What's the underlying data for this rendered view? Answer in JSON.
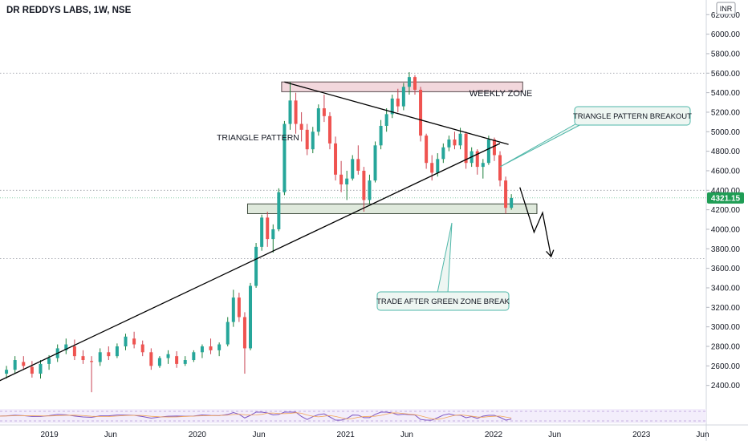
{
  "header": {
    "title": "DR REDDYS LABS, 1W, NSE"
  },
  "currency_badge": "INR",
  "price_tag": "4321.15",
  "annotations": {
    "weekly_zone": "WEEKLY ZONE",
    "triangle_pattern": "TRIANGLE PATTERN",
    "triangle_breakout": "TRIANGLE PATTERN BREAKOUT",
    "trade_note": "TRADE AFTER GREEN ZONE BREAK"
  },
  "colors": {
    "up": "#26a69a",
    "down": "#ef5350",
    "wick_up": "#1b7f3a",
    "wick_down": "#c94453",
    "weekly_zone_fill": "#f2d7dc",
    "green_zone_fill": "#dfe9dc",
    "callout_border": "#4fb7a9",
    "callout_fill": "#eef6f2",
    "price_tag": "#1f9d55",
    "axis_text": "#131722",
    "grid": "#b2b5be"
  },
  "chart_data": {
    "type": "candlestick",
    "title": "DR REDDYS LABS, 1W, NSE",
    "currency": "INR",
    "last_price": 4321.15,
    "y_ticks": [
      2400,
      2600,
      2800,
      3000,
      3200,
      3400,
      3600,
      3800,
      4000,
      4200,
      4400,
      4600,
      4800,
      5000,
      5200,
      5400,
      5600,
      5800,
      6000,
      6200
    ],
    "y_tick_labels": [
      "2400.00",
      "2600.00",
      "2800.00",
      "3000.00",
      "3200.00",
      "3400.00",
      "3600.00",
      "3800.00",
      "4000.00",
      "4200.00",
      "4400.00",
      "4600.00",
      "4800.00",
      "5000.00",
      "5200.00",
      "5400.00",
      "5600.00",
      "5800.00",
      "6000.00",
      "6200.00"
    ],
    "ylim": [
      2200,
      6350
    ],
    "x_ticks": [
      {
        "label": "2019",
        "date": "2019-01-01"
      },
      {
        "label": "Jun",
        "date": "2019-06-01"
      },
      {
        "label": "2020",
        "date": "2020-01-01"
      },
      {
        "label": "Jun",
        "date": "2020-06-01"
      },
      {
        "label": "2021",
        "date": "2021-01-01"
      },
      {
        "label": "Jun",
        "date": "2021-06-01"
      },
      {
        "label": "2022",
        "date": "2022-01-01"
      },
      {
        "label": "Jun",
        "date": "2022-06-01"
      },
      {
        "label": "2023",
        "date": "2023-01-01"
      },
      {
        "label": "Jun",
        "date": "2023-06-01"
      }
    ],
    "xlim": [
      "2018-09-01",
      "2023-06-10"
    ],
    "horizontal_levels": [
      5600,
      4400,
      3700
    ],
    "weekly_zone": {
      "from": "2020-07-27",
      "to": "2022-03-14",
      "low": 5410,
      "high": 5510
    },
    "green_zone": {
      "from": "2020-05-04",
      "to": "2022-04-18",
      "low": 4160,
      "high": 4260
    },
    "trendlines": [
      {
        "name": "ascending",
        "from": {
          "date": "2018-08-27",
          "price": 2440
        },
        "to": {
          "date": "2022-01-17",
          "price": 4880
        }
      },
      {
        "name": "descending",
        "from": {
          "date": "2020-08-03",
          "price": 5510
        },
        "to": {
          "date": "2022-02-07",
          "price": 4870
        }
      }
    ],
    "projection": [
      {
        "date": "2022-03-07",
        "price": 4430
      },
      {
        "date": "2022-04-11",
        "price": 3970
      },
      {
        "date": "2022-05-02",
        "price": 4170
      },
      {
        "date": "2022-05-23",
        "price": 3720
      }
    ],
    "indicator": {
      "type": "oscillator",
      "range": [
        0,
        100
      ]
    },
    "candles": [
      {
        "date": "2018-08-27",
        "o": 2490,
        "h": 2560,
        "l": 2440,
        "c": 2520
      },
      {
        "date": "2018-09-17",
        "o": 2520,
        "h": 2600,
        "l": 2470,
        "c": 2560
      },
      {
        "date": "2018-10-08",
        "o": 2560,
        "h": 2700,
        "l": 2520,
        "c": 2660
      },
      {
        "date": "2018-10-29",
        "o": 2640,
        "h": 2700,
        "l": 2560,
        "c": 2600
      },
      {
        "date": "2018-11-19",
        "o": 2590,
        "h": 2650,
        "l": 2480,
        "c": 2520
      },
      {
        "date": "2018-12-10",
        "o": 2520,
        "h": 2660,
        "l": 2470,
        "c": 2620
      },
      {
        "date": "2018-12-31",
        "o": 2620,
        "h": 2710,
        "l": 2560,
        "c": 2680
      },
      {
        "date": "2019-01-21",
        "o": 2680,
        "h": 2820,
        "l": 2640,
        "c": 2780
      },
      {
        "date": "2019-02-11",
        "o": 2760,
        "h": 2880,
        "l": 2720,
        "c": 2820
      },
      {
        "date": "2019-03-04",
        "o": 2800,
        "h": 2870,
        "l": 2660,
        "c": 2700
      },
      {
        "date": "2019-03-25",
        "o": 2700,
        "h": 2760,
        "l": 2620,
        "c": 2660
      },
      {
        "date": "2019-04-15",
        "o": 2650,
        "h": 2700,
        "l": 2330,
        "c": 2640
      },
      {
        "date": "2019-05-06",
        "o": 2640,
        "h": 2780,
        "l": 2600,
        "c": 2740
      },
      {
        "date": "2019-05-27",
        "o": 2740,
        "h": 2800,
        "l": 2660,
        "c": 2700
      },
      {
        "date": "2019-06-17",
        "o": 2700,
        "h": 2830,
        "l": 2680,
        "c": 2800
      },
      {
        "date": "2019-07-08",
        "o": 2800,
        "h": 2930,
        "l": 2760,
        "c": 2900
      },
      {
        "date": "2019-07-29",
        "o": 2880,
        "h": 2950,
        "l": 2780,
        "c": 2820
      },
      {
        "date": "2019-08-19",
        "o": 2820,
        "h": 2860,
        "l": 2700,
        "c": 2740
      },
      {
        "date": "2019-09-09",
        "o": 2740,
        "h": 2780,
        "l": 2560,
        "c": 2600
      },
      {
        "date": "2019-09-30",
        "o": 2600,
        "h": 2700,
        "l": 2580,
        "c": 2680
      },
      {
        "date": "2019-10-21",
        "o": 2680,
        "h": 2760,
        "l": 2620,
        "c": 2720
      },
      {
        "date": "2019-11-11",
        "o": 2700,
        "h": 2750,
        "l": 2580,
        "c": 2620
      },
      {
        "date": "2019-12-02",
        "o": 2620,
        "h": 2700,
        "l": 2600,
        "c": 2660
      },
      {
        "date": "2019-12-23",
        "o": 2660,
        "h": 2760,
        "l": 2640,
        "c": 2740
      },
      {
        "date": "2020-01-13",
        "o": 2740,
        "h": 2820,
        "l": 2680,
        "c": 2800
      },
      {
        "date": "2020-02-03",
        "o": 2800,
        "h": 2880,
        "l": 2720,
        "c": 2760
      },
      {
        "date": "2020-02-24",
        "o": 2760,
        "h": 2840,
        "l": 2700,
        "c": 2820
      },
      {
        "date": "2020-03-16",
        "o": 2820,
        "h": 3100,
        "l": 2800,
        "c": 3050
      },
      {
        "date": "2020-03-30",
        "o": 3050,
        "h": 3380,
        "l": 3000,
        "c": 3300
      },
      {
        "date": "2020-04-13",
        "o": 3300,
        "h": 3350,
        "l": 3050,
        "c": 3100
      },
      {
        "date": "2020-04-27",
        "o": 3100,
        "h": 3150,
        "l": 2520,
        "c": 2780
      },
      {
        "date": "2020-05-11",
        "o": 2780,
        "h": 3450,
        "l": 2760,
        "c": 3420
      },
      {
        "date": "2020-05-25",
        "o": 3420,
        "h": 3860,
        "l": 3400,
        "c": 3820
      },
      {
        "date": "2020-06-08",
        "o": 3820,
        "h": 4150,
        "l": 3780,
        "c": 4120
      },
      {
        "date": "2020-06-22",
        "o": 4120,
        "h": 4180,
        "l": 3820,
        "c": 3900
      },
      {
        "date": "2020-07-06",
        "o": 3900,
        "h": 4050,
        "l": 3760,
        "c": 4000
      },
      {
        "date": "2020-07-20",
        "o": 4000,
        "h": 4420,
        "l": 3980,
        "c": 4380
      },
      {
        "date": "2020-08-03",
        "o": 4380,
        "h": 5110,
        "l": 4350,
        "c": 5080
      },
      {
        "date": "2020-08-17",
        "o": 5080,
        "h": 5510,
        "l": 5020,
        "c": 5320
      },
      {
        "date": "2020-08-31",
        "o": 5320,
        "h": 5400,
        "l": 4980,
        "c": 5080
      },
      {
        "date": "2020-09-14",
        "o": 5080,
        "h": 5200,
        "l": 4900,
        "c": 5020
      },
      {
        "date": "2020-09-28",
        "o": 5020,
        "h": 5080,
        "l": 4760,
        "c": 4820
      },
      {
        "date": "2020-10-12",
        "o": 4820,
        "h": 5050,
        "l": 4780,
        "c": 5000
      },
      {
        "date": "2020-10-26",
        "o": 5000,
        "h": 5280,
        "l": 4960,
        "c": 5240
      },
      {
        "date": "2020-11-09",
        "o": 5240,
        "h": 5380,
        "l": 5100,
        "c": 5160
      },
      {
        "date": "2020-11-23",
        "o": 5160,
        "h": 5200,
        "l": 4820,
        "c": 4880
      },
      {
        "date": "2020-12-07",
        "o": 4880,
        "h": 4950,
        "l": 4500,
        "c": 4560
      },
      {
        "date": "2020-12-21",
        "o": 4560,
        "h": 4700,
        "l": 4380,
        "c": 4460
      },
      {
        "date": "2021-01-04",
        "o": 4460,
        "h": 4600,
        "l": 4300,
        "c": 4520
      },
      {
        "date": "2021-01-18",
        "o": 4520,
        "h": 4760,
        "l": 4500,
        "c": 4720
      },
      {
        "date": "2021-02-01",
        "o": 4720,
        "h": 4860,
        "l": 4560,
        "c": 4600
      },
      {
        "date": "2021-02-15",
        "o": 4600,
        "h": 4640,
        "l": 4180,
        "c": 4300
      },
      {
        "date": "2021-03-01",
        "o": 4300,
        "h": 4560,
        "l": 4260,
        "c": 4500
      },
      {
        "date": "2021-03-15",
        "o": 4500,
        "h": 4900,
        "l": 4480,
        "c": 4860
      },
      {
        "date": "2021-03-29",
        "o": 4860,
        "h": 5120,
        "l": 4820,
        "c": 5060
      },
      {
        "date": "2021-04-12",
        "o": 5060,
        "h": 5240,
        "l": 5000,
        "c": 5180
      },
      {
        "date": "2021-04-26",
        "o": 5180,
        "h": 5380,
        "l": 5140,
        "c": 5340
      },
      {
        "date": "2021-05-10",
        "o": 5340,
        "h": 5440,
        "l": 5200,
        "c": 5260
      },
      {
        "date": "2021-05-24",
        "o": 5260,
        "h": 5500,
        "l": 5220,
        "c": 5460
      },
      {
        "date": "2021-06-07",
        "o": 5460,
        "h": 5610,
        "l": 5380,
        "c": 5560
      },
      {
        "date": "2021-06-21",
        "o": 5560,
        "h": 5580,
        "l": 5380,
        "c": 5430
      },
      {
        "date": "2021-07-05",
        "o": 5430,
        "h": 5460,
        "l": 4900,
        "c": 4960
      },
      {
        "date": "2021-07-19",
        "o": 4960,
        "h": 4980,
        "l": 4620,
        "c": 4680
      },
      {
        "date": "2021-08-02",
        "o": 4680,
        "h": 4760,
        "l": 4500,
        "c": 4580
      },
      {
        "date": "2021-08-16",
        "o": 4580,
        "h": 4780,
        "l": 4540,
        "c": 4720
      },
      {
        "date": "2021-08-30",
        "o": 4720,
        "h": 4880,
        "l": 4680,
        "c": 4840
      },
      {
        "date": "2021-09-13",
        "o": 4840,
        "h": 4960,
        "l": 4800,
        "c": 4920
      },
      {
        "date": "2021-09-27",
        "o": 4920,
        "h": 5000,
        "l": 4820,
        "c": 4860
      },
      {
        "date": "2021-10-11",
        "o": 4860,
        "h": 5040,
        "l": 4820,
        "c": 4980
      },
      {
        "date": "2021-10-25",
        "o": 4980,
        "h": 5000,
        "l": 4620,
        "c": 4680
      },
      {
        "date": "2021-11-08",
        "o": 4680,
        "h": 4840,
        "l": 4640,
        "c": 4800
      },
      {
        "date": "2021-11-22",
        "o": 4800,
        "h": 4820,
        "l": 4560,
        "c": 4640
      },
      {
        "date": "2021-12-06",
        "o": 4640,
        "h": 4720,
        "l": 4520,
        "c": 4680
      },
      {
        "date": "2021-12-20",
        "o": 4680,
        "h": 4960,
        "l": 4660,
        "c": 4920
      },
      {
        "date": "2022-01-03",
        "o": 4920,
        "h": 4940,
        "l": 4700,
        "c": 4760
      },
      {
        "date": "2022-01-17",
        "o": 4760,
        "h": 4800,
        "l": 4440,
        "c": 4500
      },
      {
        "date": "2022-01-31",
        "o": 4500,
        "h": 4540,
        "l": 4160,
        "c": 4220
      },
      {
        "date": "2022-02-14",
        "o": 4220,
        "h": 4360,
        "l": 4200,
        "c": 4321
      }
    ]
  }
}
